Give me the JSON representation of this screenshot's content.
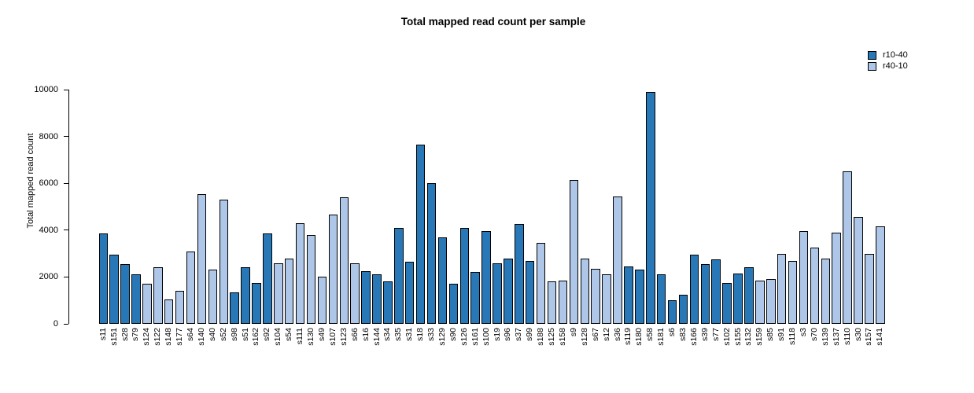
{
  "chart_data": {
    "type": "bar",
    "title": "Total mapped read count per sample",
    "xlabel": "",
    "ylabel": "Total mapped read count",
    "ylim": [
      0,
      10000
    ],
    "yticks": [
      0,
      2000,
      4000,
      6000,
      8000,
      10000
    ],
    "grid": false,
    "legend_position": "top-right",
    "legend": [
      {
        "label": "r10-40",
        "series": "r10-40"
      },
      {
        "label": "r40-10",
        "series": "r40-10"
      }
    ],
    "series_colors": {
      "r10-40": "#2878B8",
      "r40-10": "#AEC7E8"
    },
    "categories": [
      "s11",
      "s151",
      "s28",
      "s79",
      "s124",
      "s122",
      "s148",
      "s177",
      "s64",
      "s140",
      "s40",
      "s52",
      "s98",
      "s51",
      "s162",
      "s92",
      "s104",
      "s54",
      "s111",
      "s130",
      "s49",
      "s107",
      "s123",
      "s66",
      "s16",
      "s144",
      "s34",
      "s35",
      "s31",
      "s18",
      "s33",
      "s129",
      "s90",
      "s126",
      "s161",
      "s100",
      "s19",
      "s96",
      "s37",
      "s99",
      "s188",
      "s125",
      "s158",
      "s9",
      "s128",
      "s67",
      "s12",
      "s36",
      "s119",
      "s180",
      "s58",
      "s181",
      "s6",
      "s83",
      "s166",
      "s39",
      "s77",
      "s102",
      "s155",
      "s132",
      "s159",
      "s85",
      "s91",
      "s118",
      "s3",
      "s70",
      "s139",
      "s137",
      "s110",
      "s30",
      "s157",
      "s141"
    ],
    "values": [
      3850,
      2950,
      2550,
      2100,
      1700,
      2400,
      1050,
      1400,
      3100,
      5550,
      2300,
      5300,
      1350,
      2400,
      1750,
      3850,
      2600,
      2800,
      4300,
      3800,
      2000,
      4650,
      5400,
      2600,
      2250,
      2100,
      1800,
      4100,
      2650,
      7650,
      6000,
      3700,
      1700,
      4100,
      2200,
      3950,
      2600,
      2800,
      4250,
      2700,
      3450,
      1800,
      1850,
      6150,
      2800,
      2350,
      2100,
      5450,
      2450,
      2300,
      9900,
      2100,
      1000,
      1250,
      2950,
      2550,
      2750,
      1750,
      2150,
      2400,
      1850,
      1900,
      3000,
      2700,
      3950,
      3250,
      2800,
      3900,
      6500,
      4550,
      3000,
      4150
    ],
    "groups": [
      "r10-40",
      "r10-40",
      "r10-40",
      "r10-40",
      "r40-10",
      "r40-10",
      "r40-10",
      "r40-10",
      "r40-10",
      "r40-10",
      "r40-10",
      "r40-10",
      "r10-40",
      "r10-40",
      "r10-40",
      "r10-40",
      "r40-10",
      "r40-10",
      "r40-10",
      "r40-10",
      "r40-10",
      "r40-10",
      "r40-10",
      "r40-10",
      "r10-40",
      "r10-40",
      "r10-40",
      "r10-40",
      "r10-40",
      "r10-40",
      "r10-40",
      "r10-40",
      "r10-40",
      "r10-40",
      "r10-40",
      "r10-40",
      "r10-40",
      "r10-40",
      "r10-40",
      "r10-40",
      "r40-10",
      "r40-10",
      "r40-10",
      "r40-10",
      "r40-10",
      "r40-10",
      "r40-10",
      "r40-10",
      "r10-40",
      "r10-40",
      "r10-40",
      "r10-40",
      "r10-40",
      "r10-40",
      "r10-40",
      "r10-40",
      "r10-40",
      "r10-40",
      "r10-40",
      "r10-40",
      "r40-10",
      "r40-10",
      "r40-10",
      "r40-10",
      "r40-10",
      "r40-10",
      "r40-10",
      "r40-10",
      "r40-10",
      "r40-10",
      "r40-10",
      "r40-10"
    ]
  }
}
